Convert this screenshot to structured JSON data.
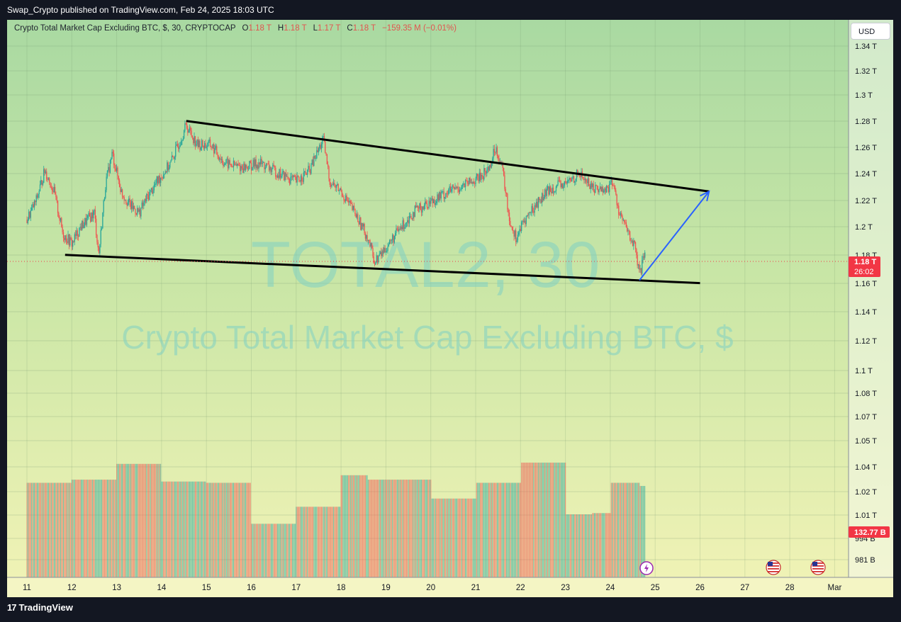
{
  "header": {
    "published_text": "Swap_Crypto published on TradingView.com, Feb 24, 2025 18:03 UTC"
  },
  "legend": {
    "title": "Crypto Total Market Cap Excluding BTC, $, 30, CRYPTOCAP",
    "o_key": "O",
    "o_val": "1.18 T",
    "h_key": "H",
    "h_val": "1.18 T",
    "l_key": "L",
    "l_val": "1.17 T",
    "c_key": "C",
    "c_val": "1.18 T",
    "change": "−159.35 M (−0.01%)"
  },
  "currency_button": "USD",
  "watermark": {
    "symbol": "TOTAL2, 30",
    "name": "Crypto Total Market Cap Excluding BTC, $"
  },
  "footer": {
    "brand": "TradingView",
    "logo": "17"
  },
  "colors": {
    "up": "#26a69a",
    "down": "#ef5350",
    "trendline": "#000000",
    "projection": "#2962ff",
    "price_tag": "#f23645"
  },
  "chart_data": {
    "type": "candlestick",
    "symbol": "TOTAL2",
    "interval": "30",
    "y_axis_labels": [
      "1.34 T",
      "1.32 T",
      "1.3 T",
      "1.28 T",
      "1.26 T",
      "1.24 T",
      "1.22 T",
      "1.2 T",
      "1.18 T",
      "1.16 T",
      "1.14 T",
      "1.12 T",
      "1.1 T",
      "1.08 T",
      "1.07 T",
      "1.05 T",
      "1.04 T",
      "1.02 T",
      "1.01 T",
      "994 B",
      "981 B"
    ],
    "x_axis_labels": [
      "11",
      "12",
      "13",
      "14",
      "15",
      "16",
      "17",
      "18",
      "19",
      "20",
      "21",
      "22",
      "23",
      "24",
      "25",
      "26",
      "27",
      "28",
      "Mar"
    ],
    "current_price_label": "1.18 T",
    "countdown_label": "26:02",
    "volume_label": "132.77 B",
    "price_path": [
      [
        11.0,
        1.205
      ],
      [
        11.2,
        1.218
      ],
      [
        11.4,
        1.24
      ],
      [
        11.6,
        1.225
      ],
      [
        11.8,
        1.195
      ],
      [
        12.0,
        1.188
      ],
      [
        12.2,
        1.2
      ],
      [
        12.5,
        1.21
      ],
      [
        12.6,
        1.18
      ],
      [
        12.75,
        1.23
      ],
      [
        12.9,
        1.252
      ],
      [
        13.1,
        1.225
      ],
      [
        13.3,
        1.215
      ],
      [
        13.5,
        1.21
      ],
      [
        13.7,
        1.222
      ],
      [
        13.9,
        1.232
      ],
      [
        14.2,
        1.245
      ],
      [
        14.55,
        1.272
      ],
      [
        14.8,
        1.258
      ],
      [
        15.1,
        1.258
      ],
      [
        15.4,
        1.245
      ],
      [
        15.8,
        1.242
      ],
      [
        16.2,
        1.245
      ],
      [
        16.6,
        1.238
      ],
      [
        17.0,
        1.232
      ],
      [
        17.3,
        1.24
      ],
      [
        17.6,
        1.262
      ],
      [
        17.75,
        1.232
      ],
      [
        18.0,
        1.225
      ],
      [
        18.3,
        1.21
      ],
      [
        18.6,
        1.192
      ],
      [
        18.75,
        1.175
      ],
      [
        19.0,
        1.185
      ],
      [
        19.3,
        1.198
      ],
      [
        19.6,
        1.21
      ],
      [
        20.0,
        1.218
      ],
      [
        20.4,
        1.225
      ],
      [
        20.8,
        1.23
      ],
      [
        21.1,
        1.235
      ],
      [
        21.3,
        1.242
      ],
      [
        21.45,
        1.257
      ],
      [
        21.6,
        1.24
      ],
      [
        21.75,
        1.205
      ],
      [
        21.9,
        1.192
      ],
      [
        22.1,
        1.205
      ],
      [
        22.4,
        1.218
      ],
      [
        22.7,
        1.228
      ],
      [
        23.0,
        1.23
      ],
      [
        23.3,
        1.238
      ],
      [
        23.6,
        1.228
      ],
      [
        23.9,
        1.226
      ],
      [
        24.05,
        1.232
      ],
      [
        24.2,
        1.21
      ],
      [
        24.4,
        1.195
      ],
      [
        24.55,
        1.185
      ],
      [
        24.65,
        1.165
      ],
      [
        24.75,
        1.178
      ]
    ],
    "trendlines": [
      {
        "name": "upper",
        "from": [
          14.55,
          1.275
        ],
        "to": [
          26.2,
          1.225
        ]
      },
      {
        "name": "lower",
        "from": [
          11.85,
          1.18
        ],
        "to": [
          26.0,
          1.16
        ]
      }
    ],
    "projection_arrow": {
      "from": [
        24.65,
        1.162
      ],
      "to": [
        26.2,
        1.225
      ]
    },
    "volume_steps": [
      [
        11.0,
        1.5
      ],
      [
        12.0,
        1.55
      ],
      [
        13.0,
        1.8
      ],
      [
        14.0,
        1.52
      ],
      [
        15.0,
        1.5
      ],
      [
        16.0,
        0.85
      ],
      [
        17.0,
        1.12
      ],
      [
        18.0,
        1.62
      ],
      [
        18.6,
        1.55
      ],
      [
        19.0,
        1.55
      ],
      [
        20.0,
        1.25
      ],
      [
        21.0,
        1.5
      ],
      [
        22.0,
        1.82
      ],
      [
        23.0,
        1.0
      ],
      [
        23.6,
        1.02
      ],
      [
        24.0,
        1.5
      ],
      [
        24.65,
        1.45
      ]
    ]
  }
}
